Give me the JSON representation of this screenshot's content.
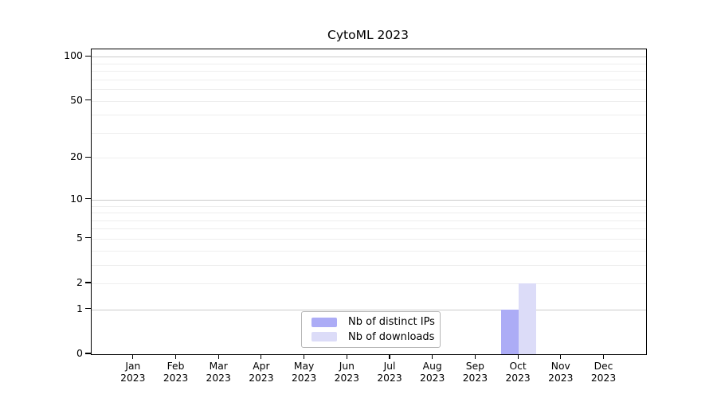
{
  "chart_data": {
    "type": "bar",
    "title": "CytoML 2023",
    "categories": [
      "Jan",
      "Feb",
      "Mar",
      "Apr",
      "May",
      "Jun",
      "Jul",
      "Aug",
      "Sep",
      "Oct",
      "Nov",
      "Dec"
    ],
    "category_year": "2023",
    "series": [
      {
        "name": "Nb of distinct IPs",
        "color": "#acacf6",
        "values": [
          0,
          0,
          0,
          0,
          0,
          0,
          0,
          0,
          0,
          1,
          0,
          0
        ]
      },
      {
        "name": "Nb of downloads",
        "color": "#dcdcf8",
        "values": [
          0,
          0,
          0,
          0,
          0,
          0,
          0,
          0,
          0,
          2,
          0,
          0
        ]
      }
    ],
    "y_axis": {
      "scale": "log1p",
      "ylim": [
        0,
        112
      ],
      "tick_values": [
        0,
        1,
        2,
        5,
        10,
        20,
        50,
        100
      ],
      "major_gridline_values": [
        1,
        10,
        100
      ],
      "minor_gridline_values": [
        2,
        3,
        4,
        5,
        6,
        7,
        8,
        9,
        20,
        30,
        40,
        50,
        60,
        70,
        80,
        90
      ]
    },
    "legend": {
      "position": "inside-bottom-center",
      "entries": [
        "Nb of distinct IPs",
        "Nb of downloads"
      ]
    },
    "grid": "horizontal",
    "colors": {
      "background": "#ffffff",
      "axis": "#000000",
      "text": "#000000",
      "major_grid": "#cbcbcb",
      "minor_grid": "#eeeeee",
      "legend_border": "#b5b5b5"
    }
  }
}
